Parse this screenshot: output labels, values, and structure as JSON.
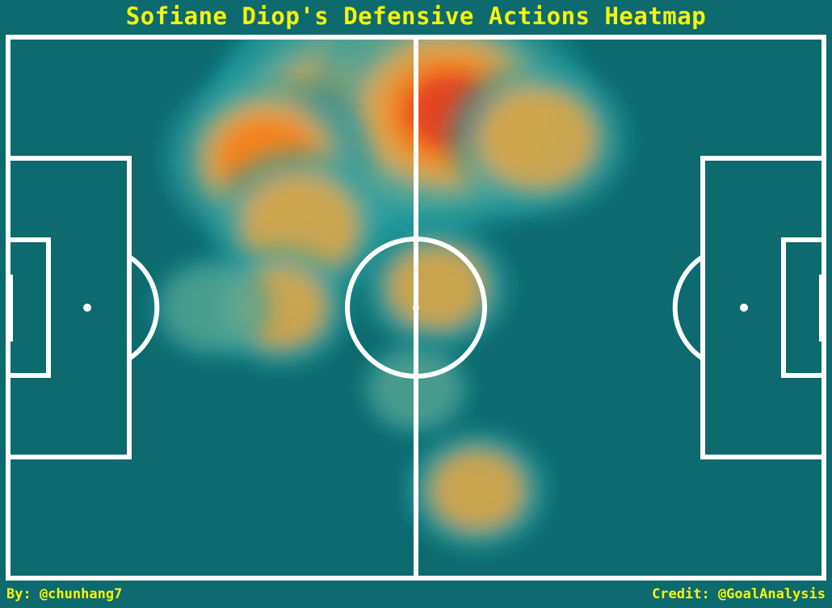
{
  "title": "Sofiane Diop's Defensive Actions Heatmap",
  "footer": {
    "author": "By: @chunhang7",
    "credit": "Credit: @GoalAnalysis"
  },
  "colors": {
    "background": "#0d6a6e",
    "lines": "#ffffff",
    "title": "#f5f50a",
    "colormap": [
      "#006a6e",
      "#1b9fa2",
      "#6aa88e",
      "#f4a73a",
      "#ff7b10",
      "#e03a24",
      "#7a0012"
    ]
  },
  "chart_data": {
    "type": "heatmap",
    "title": "Sofiane Diop's Defensive Actions Heatmap",
    "pitch": {
      "length": 120,
      "width": 80,
      "grid": false
    },
    "hotspots": [
      {
        "x": 54.5,
        "y": 10.5,
        "intensity": 1.0
      },
      {
        "x": 47,
        "y": 14,
        "intensity": 0.75
      },
      {
        "x": 65,
        "y": 11,
        "intensity": 0.85
      },
      {
        "x": 38,
        "y": 18,
        "intensity": 0.55
      },
      {
        "x": 78,
        "y": 15,
        "intensity": 0.45
      },
      {
        "x": 43,
        "y": 28,
        "intensity": 0.45
      },
      {
        "x": 40,
        "y": 40,
        "intensity": 0.3
      },
      {
        "x": 63,
        "y": 37,
        "intensity": 0.32
      },
      {
        "x": 69,
        "y": 67,
        "intensity": 0.3
      },
      {
        "x": 30,
        "y": 40,
        "intensity": 0.2
      },
      {
        "x": 60,
        "y": 52,
        "intensity": 0.16
      }
    ]
  }
}
